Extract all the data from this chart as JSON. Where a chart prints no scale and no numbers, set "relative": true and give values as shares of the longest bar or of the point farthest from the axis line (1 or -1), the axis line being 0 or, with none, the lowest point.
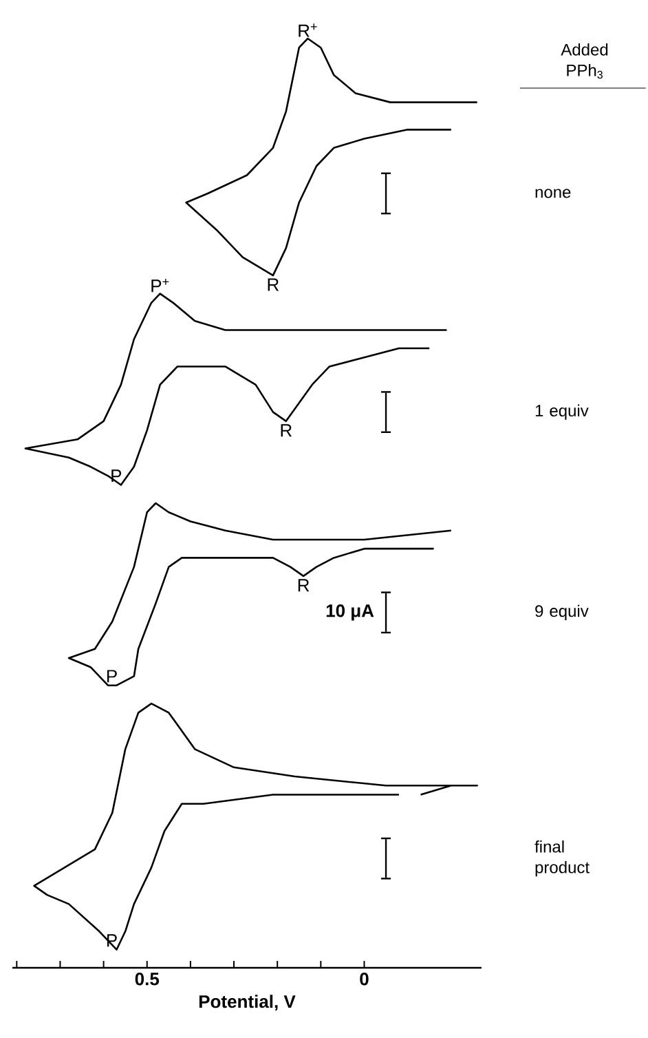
{
  "chart_data": {
    "type": "line",
    "relative": true,
    "xlabel": "Potential, V",
    "legend_title": "Added PPh$_{3}$",
    "legend": false,
    "line_style": "solid",
    "marker": "none",
    "xlim": [
      0.81,
      -0.27
    ],
    "xticks": [
      {
        "value": 0.8,
        "label": null
      },
      {
        "value": 0.7,
        "label": null
      },
      {
        "value": 0.6,
        "label": null
      },
      0.5,
      {
        "value": 0.4,
        "label": null
      },
      {
        "value": 0.3,
        "label": null
      },
      {
        "value": 0.2,
        "label": null
      },
      {
        "value": 0.1,
        "label": null
      },
      0
    ],
    "series": [
      {
        "name": "none",
        "color": "#000000",
        "x": [
          -0.2,
          -0.1,
          0.0,
          0.07,
          0.11,
          0.15,
          0.18,
          0.21,
          0.28,
          0.34,
          0.41,
          0.36,
          0.27,
          0.21,
          0.18,
          0.15,
          0.13,
          0.1,
          0.07,
          0.02,
          -0.06,
          -0.16,
          -0.26
        ],
        "values": [
          0.9,
          0.9,
          0.89,
          0.88,
          0.86,
          0.82,
          0.77,
          0.74,
          0.76,
          0.79,
          0.82,
          0.83,
          0.85,
          0.88,
          0.92,
          0.99,
          1.0,
          0.99,
          0.96,
          0.94,
          0.93,
          0.93,
          0.93
        ]
      },
      {
        "name": "1 equiv",
        "color": "#000000",
        "x": [
          -0.15,
          -0.08,
          0.0,
          0.08,
          0.12,
          0.18,
          0.21,
          0.25,
          0.32,
          0.38,
          0.43,
          0.47,
          0.5,
          0.53,
          0.56,
          0.59,
          0.63,
          0.68,
          0.78,
          0.66,
          0.6,
          0.56,
          0.53,
          0.49,
          0.47,
          0.44,
          0.39,
          0.32,
          0.26,
          0.17,
          0.01,
          -0.19
        ],
        "values": [
          0.66,
          0.66,
          0.65,
          0.64,
          0.62,
          0.58,
          0.59,
          0.62,
          0.64,
          0.64,
          0.64,
          0.62,
          0.57,
          0.53,
          0.51,
          0.52,
          0.53,
          0.54,
          0.55,
          0.56,
          0.58,
          0.62,
          0.67,
          0.71,
          0.72,
          0.71,
          0.69,
          0.68,
          0.68,
          0.68,
          0.68,
          0.68
        ]
      },
      {
        "name": "9 equiv",
        "color": "#000000",
        "x": [
          -0.16,
          -0.09,
          0.0,
          0.07,
          0.11,
          0.14,
          0.17,
          0.21,
          0.37,
          0.42,
          0.45,
          0.48,
          0.52,
          0.53,
          0.57,
          0.59,
          0.63,
          0.68,
          0.62,
          0.58,
          0.53,
          0.5,
          0.48,
          0.45,
          0.4,
          0.32,
          0.21,
          0.0,
          -0.2
        ],
        "values": [
          0.44,
          0.44,
          0.44,
          0.43,
          0.42,
          0.41,
          0.42,
          0.43,
          0.43,
          0.43,
          0.42,
          0.38,
          0.33,
          0.3,
          0.29,
          0.29,
          0.31,
          0.32,
          0.33,
          0.36,
          0.42,
          0.48,
          0.49,
          0.48,
          0.47,
          0.46,
          0.45,
          0.45,
          0.46
        ]
      },
      {
        "name": "final product",
        "color": "#000000",
        "x": [
          -0.08,
          0.02,
          0.21,
          0.37,
          0.42,
          0.46,
          0.49,
          0.53,
          0.55,
          0.57,
          0.61,
          0.68,
          0.73,
          0.76,
          0.69,
          0.62,
          0.58,
          0.55,
          0.52,
          0.49,
          0.45,
          0.39,
          0.3,
          0.16,
          -0.05,
          -0.26,
          -0.2,
          -0.13
        ],
        "values": [
          0.17,
          0.17,
          0.17,
          0.16,
          0.16,
          0.13,
          0.09,
          0.05,
          0.02,
          0.0,
          0.02,
          0.05,
          0.06,
          0.07,
          0.09,
          0.11,
          0.15,
          0.22,
          0.26,
          0.27,
          0.26,
          0.22,
          0.2,
          0.19,
          0.18,
          0.18,
          0.18,
          0.17
        ]
      }
    ],
    "annotations": [
      {
        "text": "R$^{+}$",
        "x": 0.13,
        "y": 1.0
      },
      {
        "text": "R",
        "x": 0.21,
        "y": 0.74
      },
      {
        "text": "P$^{+}$",
        "x": 0.47,
        "y": 0.72
      },
      {
        "text": "P",
        "x": 0.56,
        "y": 0.51
      },
      {
        "text": "R",
        "x": 0.18,
        "y": 0.58
      },
      {
        "text": "R",
        "x": 0.14,
        "y": 0.41
      },
      {
        "text": "P",
        "x": 0.57,
        "y": 0.29
      },
      {
        "text": "P",
        "x": 0.57,
        "y": 0.0
      },
      "10 μA"
    ]
  }
}
